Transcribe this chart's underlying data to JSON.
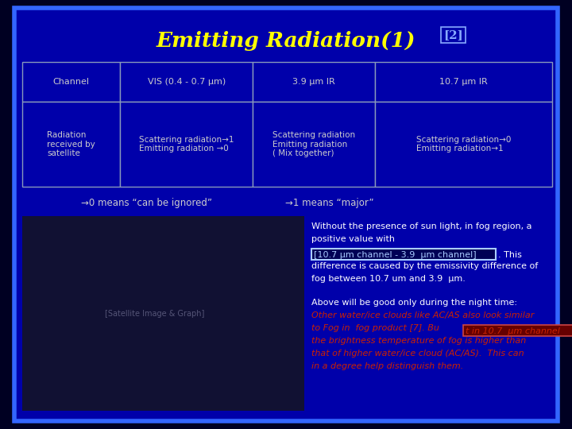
{
  "bg_outer": "#000022",
  "bg_inner": "#0000aa",
  "border_color": "#3366ff",
  "title_main": "Emitting Radiation(1)",
  "title_super": "[2]",
  "title_color": "#ffff00",
  "title_super_color": "#88aaff",
  "table_headers": [
    "Channel",
    "VIS (0.4 - 0.7 μm)",
    "3.9 μm IR",
    "10.7 μm IR"
  ],
  "table_row": [
    "Radiation\nreceived by\nsatellite",
    "Scattering radiation→1\nEmitting radiation →0",
    "Scattering radiation\nEmitting radiation\n( Mix together)",
    "Scattering radiation→0\nEmitting radiation→1"
  ],
  "table_text_color": "#cccccc",
  "table_border_color": "#8899bb",
  "arrow_note_left": "→0 means “can be ignored”",
  "arrow_note_right": "→1 means “major”",
  "arrow_note_color": "#cccccc",
  "para1_line1": "Without the presence of sun light, in fog region, a",
  "para1_line2": "positive value with",
  "para1_highlight": "[10.7 μm channel - 3.9  μm channel]",
  "para1_after": ". This",
  "para1_line4": "difference is caused by the emissivity difference of",
  "para1_line5": "fog between 10.7 um and 3.9  μm.",
  "para1_color": "#ffffff",
  "para1_highlight_color": "#aaccff",
  "para1_highlight_box": "#000055",
  "para2_line1": "Above will be good only during the night time:",
  "para2_line2": "Other water/ice clouds like AC/AS also look similar",
  "para2_line3a": "to Fog in  fog product [7]. Bu",
  "para2_highlight": "t in 10.7  μm channel",
  "para2_line4": "the brightness temperature of fog is higher than",
  "para2_line5": "that of higher water/ice cloud (AC/AS).  This can",
  "para2_line6": "in a degree help distinguish them.",
  "para2_color_white": "#ffffff",
  "para2_color_red": "#cc2200",
  "para2_highlight_bg": "#660000",
  "figsize": [
    7.2,
    5.4
  ],
  "dpi": 100
}
